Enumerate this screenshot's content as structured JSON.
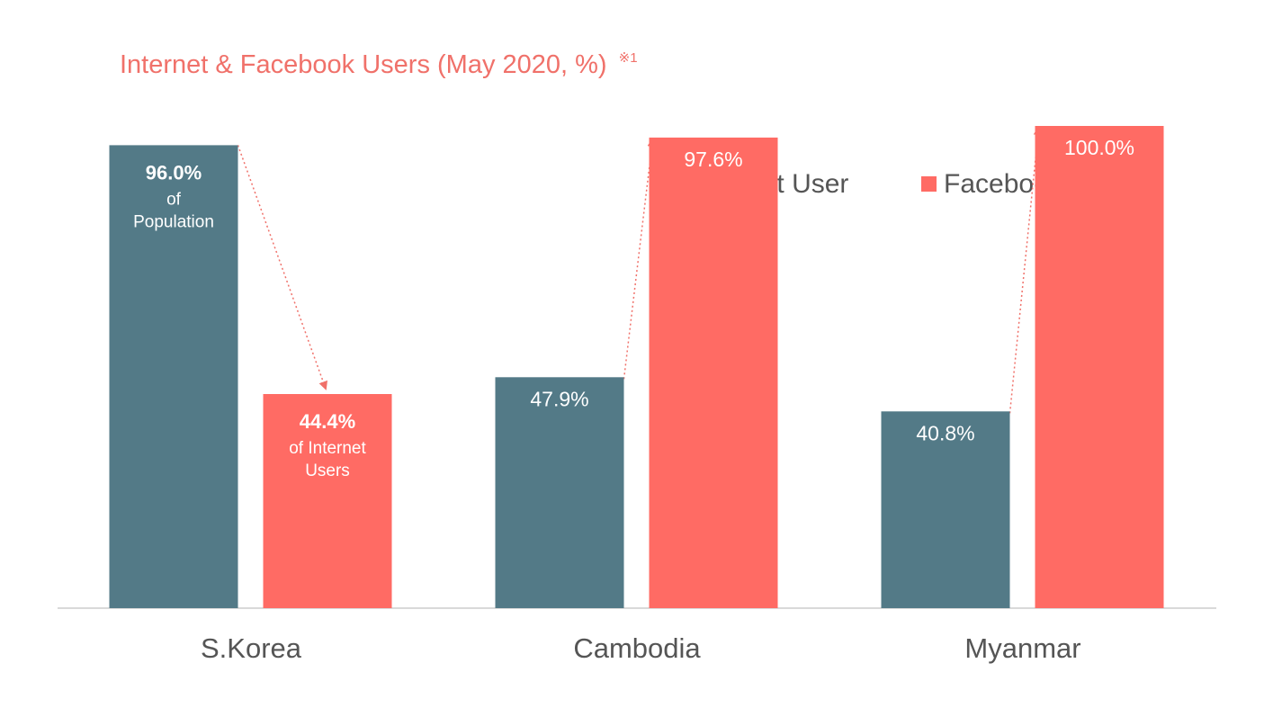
{
  "chart_data": {
    "type": "bar",
    "title": "Internet & Facebook Users (May 2020, %)",
    "title_footnote": "※1",
    "categories": [
      "S.Korea",
      "Cambodia",
      "Myanmar"
    ],
    "series": [
      {
        "name": "Internet User",
        "color": "#537a87",
        "values": [
          96.0,
          47.9,
          40.8
        ]
      },
      {
        "name": "Facebook User",
        "color": "#ff6b64",
        "values": [
          44.4,
          97.6,
          100.0
        ]
      }
    ],
    "bar_labels": [
      [
        {
          "value": "96.0%",
          "note1": "of",
          "note2": "Population"
        },
        {
          "value": "47.9%"
        },
        {
          "value": "40.8%"
        }
      ],
      [
        {
          "value": "44.4%",
          "note1": "of Internet",
          "note2": "Users"
        },
        {
          "value": "97.6%"
        },
        {
          "value": "100.0%"
        }
      ]
    ],
    "legend_position": "top-right",
    "ylim": [
      0,
      100
    ],
    "grid": false,
    "colors": {
      "title": "#f0716a",
      "axis_text": "#555555",
      "baseline": "#d9d9d9",
      "arrow": "#f0716a"
    }
  }
}
